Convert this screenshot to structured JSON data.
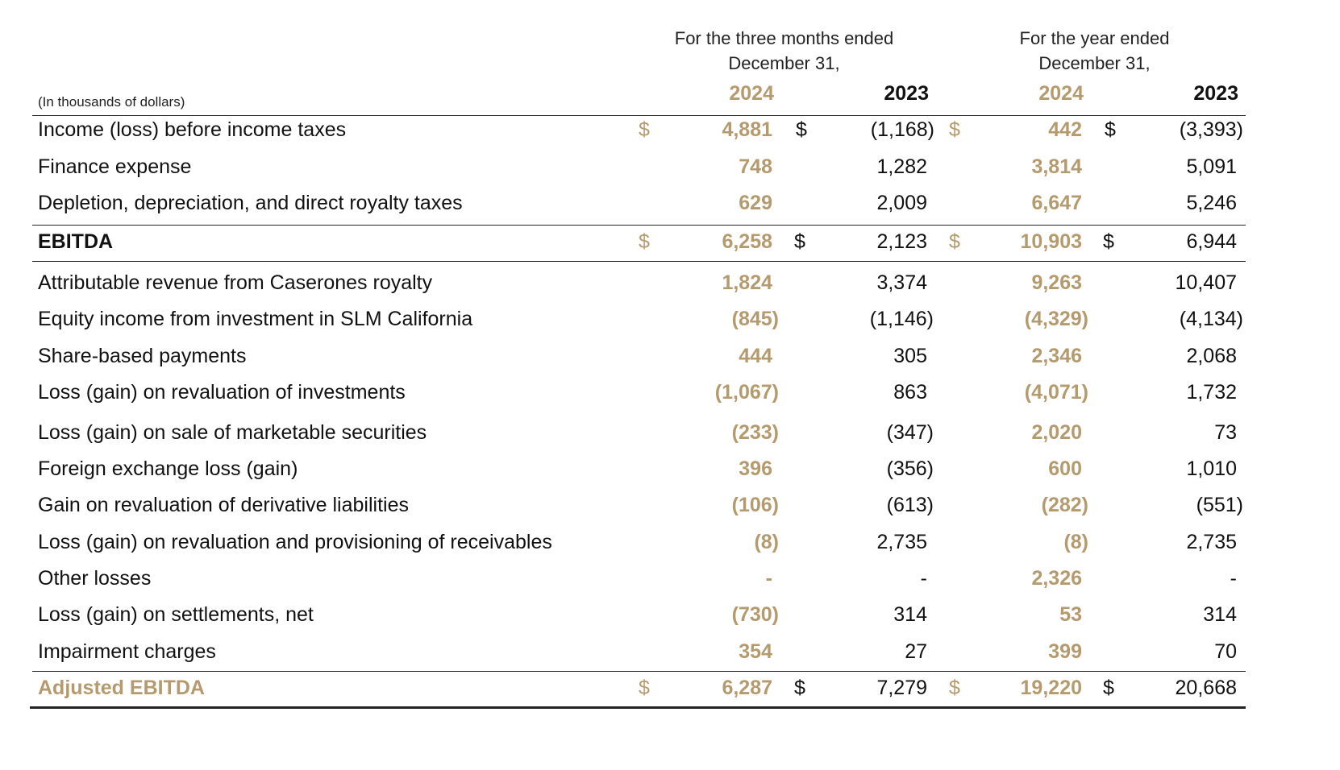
{
  "header": {
    "three_months_line1": "For the three months ended",
    "three_months_line2": "December 31,",
    "year_line1": "For the year ended",
    "year_line2": "December 31,",
    "units": "(In thousands of dollars)",
    "years": [
      "2024",
      "2023",
      "2024",
      "2023"
    ]
  },
  "colors": {
    "gold": "#b59a6d",
    "text": "#111111"
  },
  "rows": [
    {
      "label": "Income (loss) before income taxes",
      "cur": "$",
      "v": [
        "4,881",
        "(1,168)",
        "442",
        "(3,393)"
      ]
    },
    {
      "label": "Finance expense",
      "v": [
        "748",
        "1,282",
        "3,814",
        "5,091"
      ]
    },
    {
      "label": "Depletion, depreciation, and direct royalty taxes",
      "v": [
        "629",
        "2,009",
        "6,647",
        "5,246"
      ]
    },
    {
      "label": "EBITDA",
      "cur": "$",
      "v": [
        "6,258",
        "2,123",
        "10,903",
        "6,944"
      ]
    },
    {
      "label": "Attributable revenue from Caserones royalty",
      "v": [
        "1,824",
        "3,374",
        "9,263",
        "10,407"
      ]
    },
    {
      "label": "Equity income from investment in SLM California",
      "v": [
        "(845)",
        "(1,146)",
        "(4,329)",
        "(4,134)"
      ]
    },
    {
      "label": "Share-based payments",
      "v": [
        "444",
        "305",
        "2,346",
        "2,068"
      ]
    },
    {
      "label": "Loss (gain) on revaluation of investments",
      "v": [
        "(1,067)",
        "863",
        "(4,071)",
        "1,732"
      ]
    },
    {
      "label": "Loss (gain) on sale of marketable securities",
      "v": [
        "(233)",
        "(347)",
        "2,020",
        "73"
      ]
    },
    {
      "label": "Foreign exchange loss (gain)",
      "v": [
        "396",
        "(356)",
        "600",
        "1,010"
      ]
    },
    {
      "label": "Gain on revaluation of derivative liabilities",
      "v": [
        "(106)",
        "(613)",
        "(282)",
        "(551)"
      ]
    },
    {
      "label": "Loss (gain) on revaluation and provisioning of receivables",
      "v": [
        "(8)",
        "2,735",
        "(8)",
        "2,735"
      ]
    },
    {
      "label": "Other losses",
      "v": [
        "-",
        "-",
        "2,326",
        "-"
      ]
    },
    {
      "label": "Loss (gain) on settlements, net",
      "v": [
        "(730)",
        "314",
        "53",
        "314"
      ]
    },
    {
      "label": "Impairment charges",
      "v": [
        "354",
        "27",
        "399",
        "70"
      ]
    },
    {
      "label": "Adjusted EBITDA",
      "cur": "$",
      "v": [
        "6,287",
        "7,279",
        "19,220",
        "20,668"
      ]
    }
  ]
}
